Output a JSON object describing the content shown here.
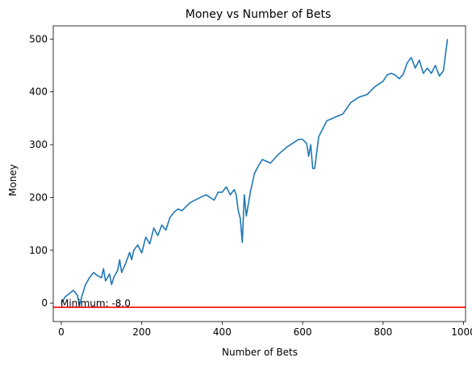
{
  "chart_data": {
    "type": "line",
    "title": "Money vs Number of Bets",
    "xlabel": "Number of Bets",
    "ylabel": "Money",
    "xlim": [
      -20,
      1005
    ],
    "ylim": [
      -35,
      525
    ],
    "xticks": [
      0,
      200,
      400,
      600,
      800,
      1000
    ],
    "yticks": [
      0,
      100,
      200,
      300,
      400,
      500
    ],
    "xtick_labels": [
      "0",
      "200",
      "400",
      "600",
      "800",
      "1000"
    ],
    "ytick_labels": [
      "0",
      "100",
      "200",
      "300",
      "400",
      "500"
    ],
    "grid": false,
    "series": [
      {
        "color": "#1f77b4",
        "x": [
          0,
          10,
          20,
          30,
          40,
          45,
          50,
          55,
          60,
          70,
          80,
          90,
          100,
          105,
          110,
          120,
          125,
          130,
          140,
          145,
          150,
          160,
          170,
          175,
          180,
          190,
          200,
          210,
          220,
          230,
          240,
          250,
          260,
          270,
          280,
          290,
          300,
          320,
          340,
          360,
          380,
          390,
          400,
          410,
          420,
          430,
          435,
          440,
          445,
          450,
          455,
          460,
          470,
          480,
          490,
          500,
          520,
          540,
          560,
          580,
          590,
          600,
          610,
          615,
          620,
          625,
          630,
          640,
          650,
          660,
          680,
          700,
          720,
          740,
          760,
          780,
          800,
          810,
          820,
          830,
          840,
          850,
          860,
          870,
          880,
          890,
          900,
          910,
          920,
          930,
          940,
          950,
          955,
          960
        ],
        "y": [
          0,
          12,
          18,
          24,
          15,
          -5,
          10,
          22,
          35,
          48,
          58,
          52,
          48,
          65,
          42,
          55,
          35,
          48,
          62,
          82,
          58,
          75,
          96,
          82,
          100,
          110,
          95,
          125,
          112,
          142,
          128,
          148,
          138,
          162,
          172,
          178,
          175,
          190,
          198,
          205,
          195,
          210,
          210,
          220,
          205,
          215,
          205,
          175,
          160,
          115,
          205,
          165,
          210,
          245,
          260,
          272,
          265,
          282,
          295,
          305,
          310,
          310,
          302,
          278,
          300,
          255,
          255,
          315,
          330,
          345,
          352,
          358,
          380,
          390,
          395,
          410,
          420,
          432,
          435,
          432,
          425,
          433,
          455,
          465,
          445,
          460,
          435,
          445,
          435,
          450,
          430,
          440,
          470,
          500
        ]
      }
    ],
    "hline": {
      "y": -8,
      "color": "#ff0000"
    },
    "annotation": {
      "text": "Minimum: -8.0",
      "x": 0,
      "y": -8
    }
  }
}
